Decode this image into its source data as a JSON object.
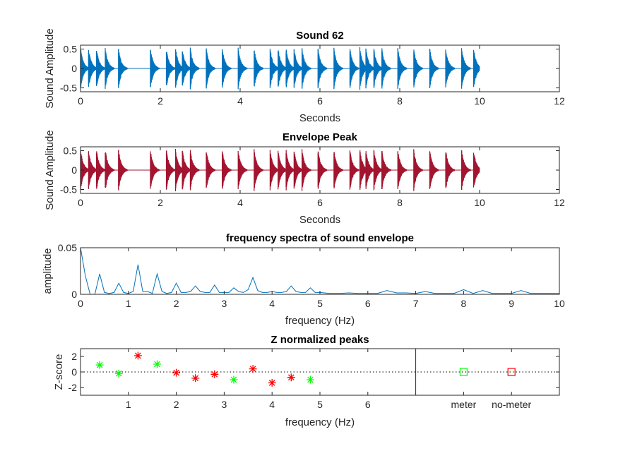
{
  "chart_data": [
    {
      "type": "line",
      "title": "Sound 62",
      "xlabel": "Seconds",
      "ylabel": "Sound Amplitude",
      "xlim": [
        0,
        12
      ],
      "ylim": [
        -0.6,
        0.6
      ],
      "xticks": [
        "0",
        "2",
        "4",
        "6",
        "8",
        "10",
        "12"
      ],
      "yticks": [
        "0.5",
        "0",
        "-0.5"
      ],
      "color": "#0072BD",
      "signal_end": 10,
      "burst_onsets": [
        0.0,
        0.2,
        0.4,
        0.62,
        0.95,
        1.75,
        2.15,
        2.38,
        2.55,
        2.75,
        3.15,
        3.55,
        3.95,
        4.35,
        4.75,
        4.95,
        5.15,
        5.35,
        5.55,
        5.95,
        6.35,
        6.75,
        7.0,
        7.15,
        7.35,
        7.55,
        7.95,
        8.35,
        8.75,
        9.15,
        9.55,
        9.85
      ],
      "burst_amplitude": 0.55
    },
    {
      "type": "line",
      "title": "Envelope Peak",
      "xlabel": "Seconds",
      "ylabel": "Sound Amplitude",
      "xlim": [
        0,
        12
      ],
      "ylim": [
        -0.6,
        0.6
      ],
      "xticks": [
        "0",
        "2",
        "4",
        "6",
        "8",
        "10",
        "12"
      ],
      "yticks": [
        "0.5",
        "0",
        "-0.5"
      ],
      "color": "#A2142F",
      "signal_end": 10,
      "burst_onsets": [
        0.0,
        0.2,
        0.4,
        0.62,
        0.95,
        1.75,
        2.15,
        2.38,
        2.55,
        2.75,
        3.15,
        3.55,
        3.95,
        4.35,
        4.75,
        4.95,
        5.15,
        5.35,
        5.55,
        5.95,
        6.35,
        6.75,
        7.0,
        7.15,
        7.35,
        7.55,
        7.95,
        8.35,
        8.75,
        9.15,
        9.55,
        9.85
      ],
      "burst_amplitude": 0.55
    },
    {
      "type": "line",
      "title": "frequency spectra of sound envelope",
      "xlabel": "frequency (Hz)",
      "ylabel": "amplitude",
      "xlim": [
        0,
        10
      ],
      "ylim": [
        0,
        0.05
      ],
      "xticks": [
        "0",
        "1",
        "2",
        "3",
        "4",
        "5",
        "6",
        "7",
        "8",
        "9",
        "10"
      ],
      "yticks": [
        "0.05",
        "0"
      ],
      "color": "#0072BD",
      "x": [
        0,
        0.1,
        0.2,
        0.3,
        0.4,
        0.5,
        0.6,
        0.7,
        0.8,
        0.9,
        1.0,
        1.1,
        1.2,
        1.3,
        1.4,
        1.5,
        1.6,
        1.7,
        1.8,
        1.9,
        2.0,
        2.1,
        2.2,
        2.3,
        2.4,
        2.5,
        2.6,
        2.7,
        2.8,
        2.9,
        3.0,
        3.1,
        3.2,
        3.3,
        3.4,
        3.5,
        3.6,
        3.7,
        3.8,
        3.9,
        4.0,
        4.1,
        4.2,
        4.3,
        4.4,
        4.5,
        4.6,
        4.7,
        4.8,
        4.9,
        5.0,
        5.2,
        5.4,
        5.6,
        5.8,
        6.0,
        6.2,
        6.4,
        6.6,
        6.8,
        7.0,
        7.2,
        7.4,
        7.6,
        7.8,
        8.0,
        8.2,
        8.4,
        8.6,
        8.8,
        9.0,
        9.2,
        9.4,
        9.6,
        9.8,
        10.0
      ],
      "y": [
        0.05,
        0.02,
        0.0,
        0.0,
        0.022,
        0.002,
        0.001,
        0.002,
        0.012,
        0.002,
        0.001,
        0.003,
        0.032,
        0.003,
        0.003,
        0.001,
        0.022,
        0.003,
        0.001,
        0.002,
        0.012,
        0.002,
        0.002,
        0.003,
        0.009,
        0.003,
        0.002,
        0.002,
        0.01,
        0.002,
        0.002,
        0.002,
        0.007,
        0.003,
        0.002,
        0.005,
        0.018,
        0.004,
        0.002,
        0.002,
        0.003,
        0.002,
        0.002,
        0.003,
        0.009,
        0.003,
        0.002,
        0.002,
        0.007,
        0.002,
        0.002,
        0.001,
        0.001,
        0.0015,
        0.001,
        0.001,
        0.001,
        0.004,
        0.0015,
        0.0015,
        0.001,
        0.003,
        0.001,
        0.001,
        0.001,
        0.005,
        0.001,
        0.004,
        0.001,
        0.001,
        0.001,
        0.004,
        0.001,
        0.001,
        0.001,
        0.001
      ]
    },
    {
      "type": "scatter",
      "title": "Z normalized peaks",
      "xlabel": "frequency (Hz)",
      "ylabel": "Z-score",
      "xlim": [
        0,
        10
      ],
      "ylim": [
        -3,
        3
      ],
      "xticks": [
        "1",
        "2",
        "3",
        "4",
        "5",
        "6"
      ],
      "xtick_values": [
        1,
        2,
        3,
        4,
        5,
        6
      ],
      "yticks": [
        "2",
        "0",
        "-2"
      ],
      "divider_x": 7,
      "category_ticks": [
        {
          "x": 8,
          "label": "meter"
        },
        {
          "x": 9,
          "label": "no-meter"
        }
      ],
      "meter_color": "#00FF00",
      "nonmeter_color": "#FF0000",
      "meter_points": {
        "x": [
          0.4,
          0.8,
          1.6,
          3.2,
          4.8
        ],
        "y": [
          0.9,
          -0.2,
          1.0,
          -1.0,
          -1.0
        ]
      },
      "nonmeter_points": {
        "x": [
          1.2,
          2.0,
          2.4,
          2.8,
          3.6,
          4.0,
          4.4
        ],
        "y": [
          2.1,
          -0.1,
          -0.8,
          -0.3,
          0.4,
          -1.4,
          -0.7
        ]
      },
      "meter_summary": {
        "x": 8,
        "y": 0
      },
      "nonmeter_summary": {
        "x": 9,
        "y": 0
      }
    }
  ]
}
